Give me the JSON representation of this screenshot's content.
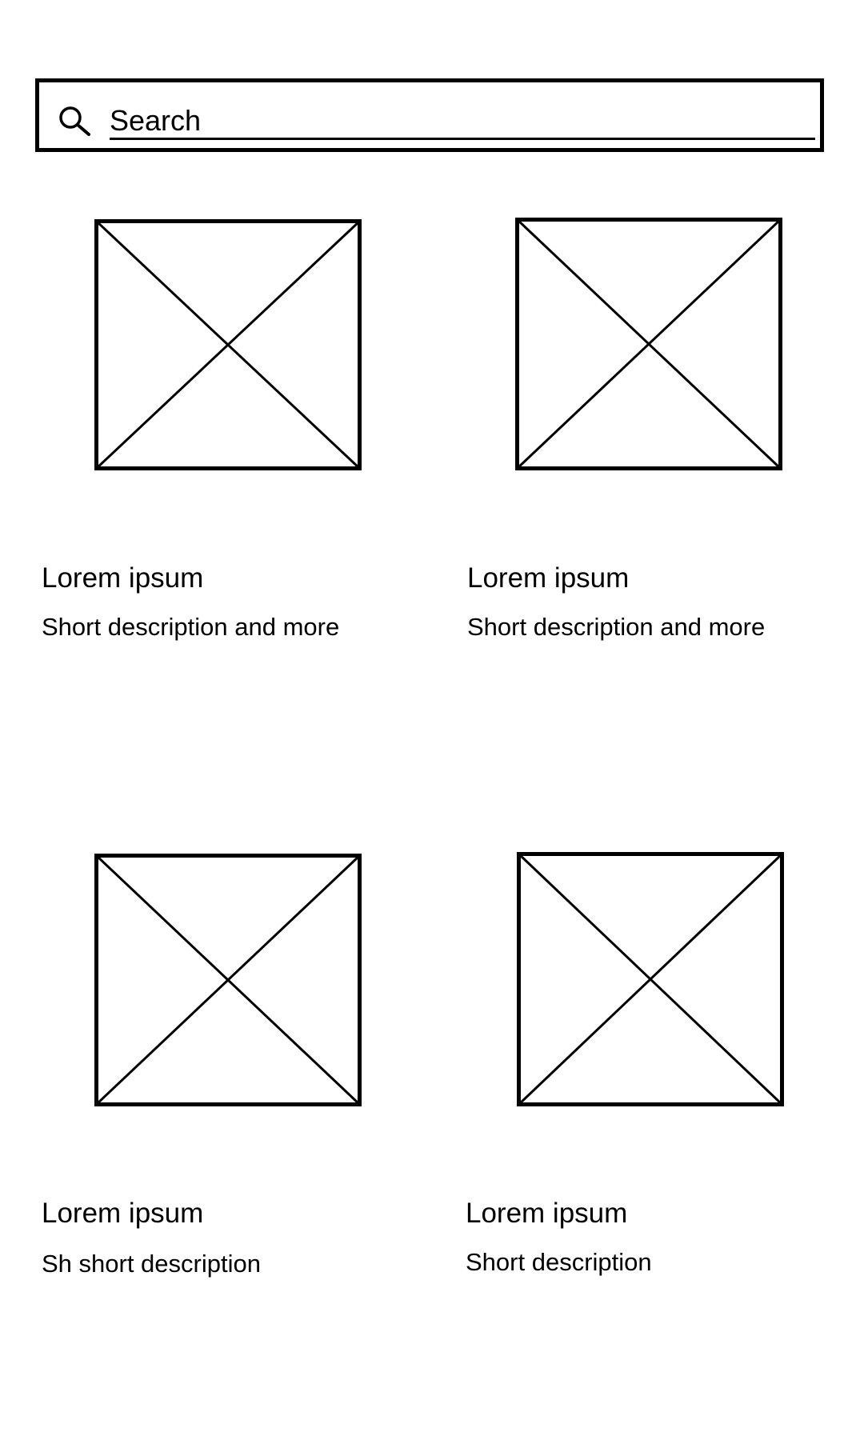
{
  "search": {
    "placeholder": "Search",
    "icon": "search-icon"
  },
  "cards": [
    {
      "image_icon": "image-placeholder-icon",
      "title": "Lorem ipsum",
      "description": "Short description and more"
    },
    {
      "image_icon": "image-placeholder-icon",
      "title": "Lorem ipsum",
      "description": "Short description and more"
    },
    {
      "image_icon": "image-placeholder-icon",
      "title": "Lorem ipsum",
      "description": "Sh short description"
    },
    {
      "image_icon": "image-placeholder-icon",
      "title": "Lorem ipsum",
      "description": "Short description"
    }
  ]
}
